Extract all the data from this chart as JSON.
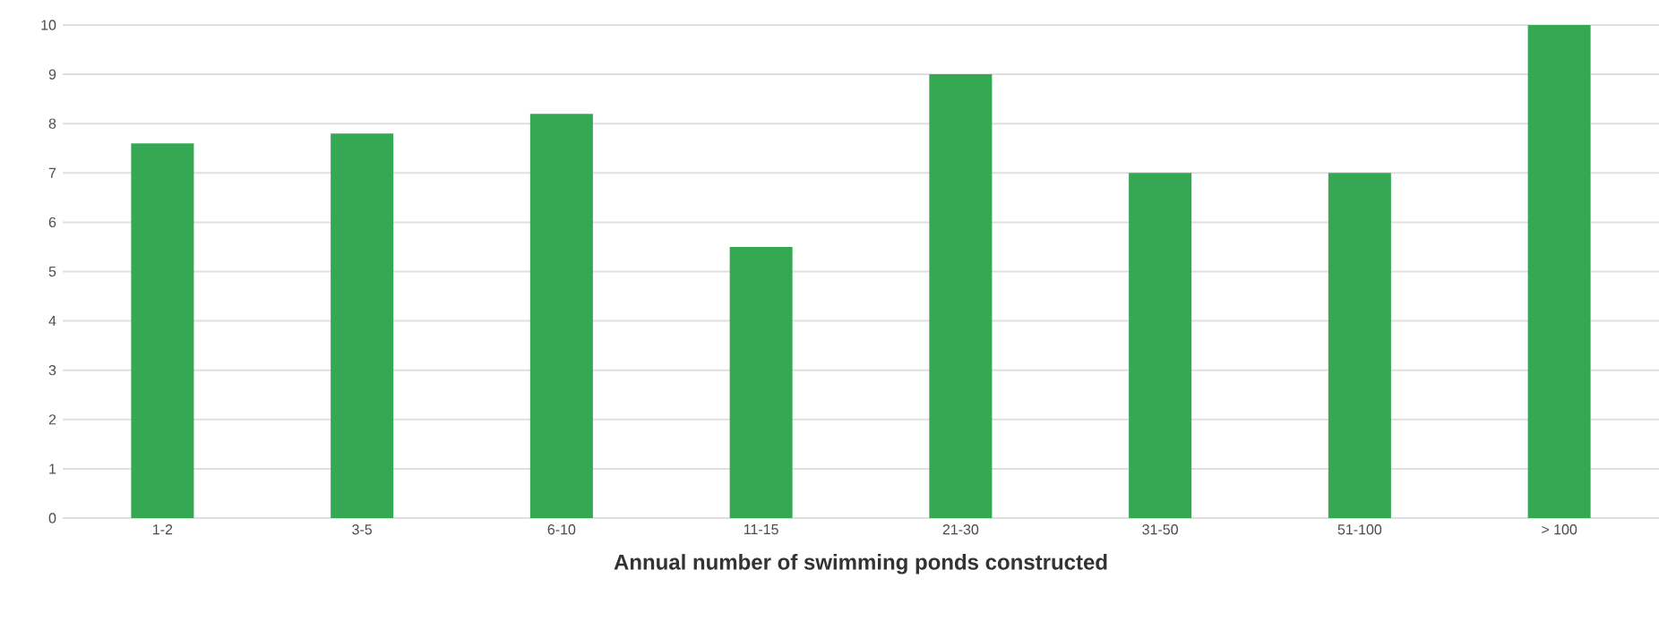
{
  "chart_data": {
    "type": "bar",
    "xlabel": "Annual number of swimming ponds constructed",
    "categories": [
      "1-2",
      "3-5",
      "6-10",
      "11-15",
      "21-30",
      "31-50",
      "51-100",
      "> 100"
    ],
    "values": [
      7.6,
      7.8,
      8.2,
      5.5,
      9,
      7,
      7,
      10
    ],
    "color": "#34a853",
    "ylim": [
      0,
      10
    ],
    "yticks": [
      0,
      1,
      2,
      3,
      4,
      5,
      6,
      7,
      8,
      9,
      10
    ],
    "grid": "y"
  }
}
